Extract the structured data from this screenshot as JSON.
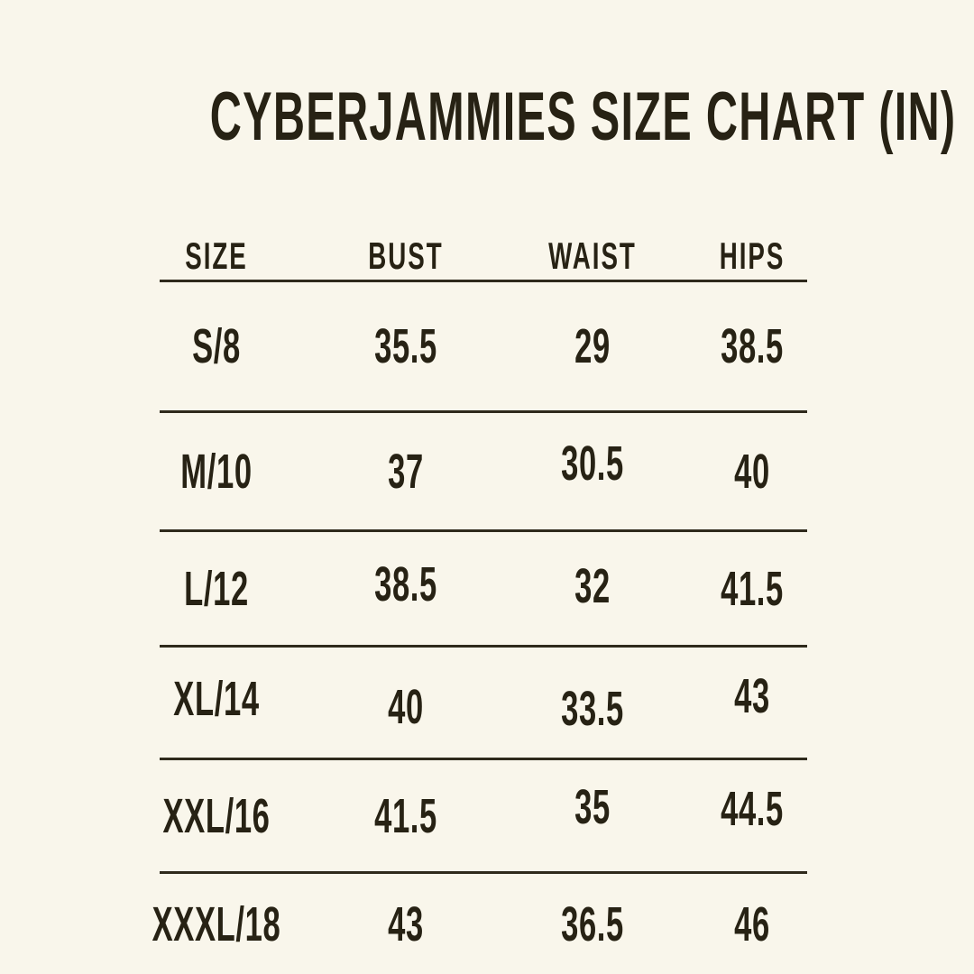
{
  "title": "CYBERJAMMIES SIZE CHART (IN)",
  "colors": {
    "background": "#f9f6eb",
    "text": "#272214",
    "rule": "#2f2a1c"
  },
  "chart_data": {
    "type": "table",
    "title": "CYBERJAMMIES SIZE CHART (IN)",
    "unit": "IN",
    "columns": [
      "SIZE",
      "BUST",
      "WAIST",
      "HIPS"
    ],
    "rows": [
      [
        "S/8",
        "35.5",
        "29",
        "38.5"
      ],
      [
        "M/10",
        "37",
        "30.5",
        "40"
      ],
      [
        "L/12",
        "38.5",
        "32",
        "41.5"
      ],
      [
        "XL/14",
        "40",
        "33.5",
        "43"
      ],
      [
        "XXL/16",
        "41.5",
        "35",
        "44.5"
      ],
      [
        "XXXL/18",
        "43",
        "36.5",
        "46"
      ]
    ]
  }
}
